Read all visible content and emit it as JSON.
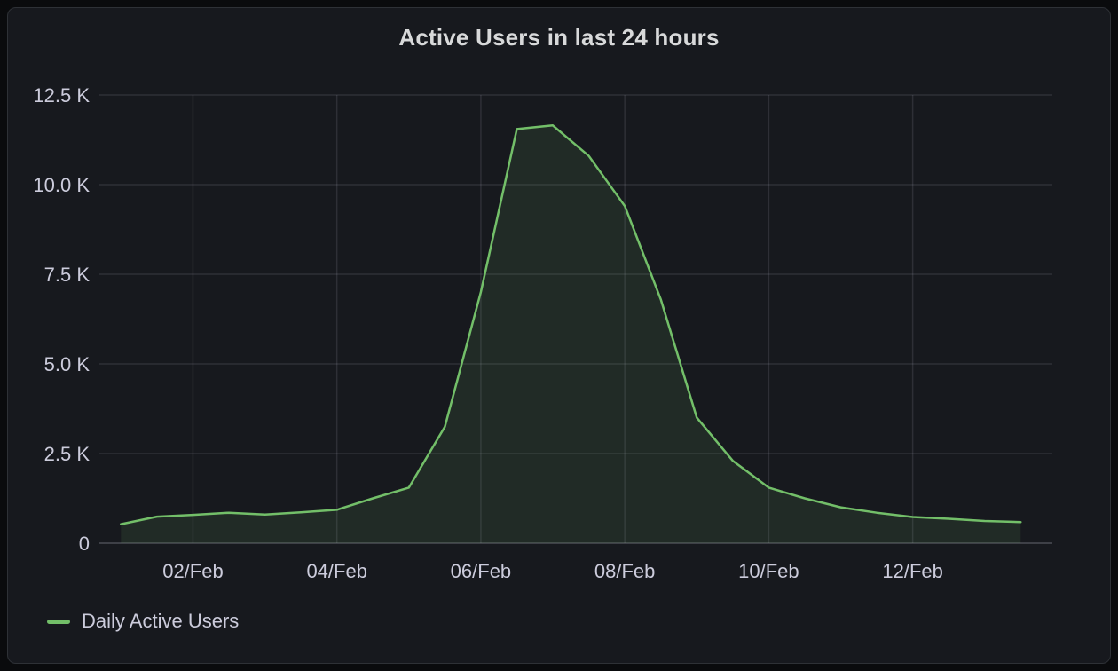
{
  "panel": {
    "title": "Active Users in last 24 hours"
  },
  "legend": {
    "items": [
      {
        "label": "Daily Active Users",
        "color": "#73bf69"
      }
    ]
  },
  "colors": {
    "page_background": "#0a0b0d",
    "panel_background": "#17191e",
    "panel_border": "#2e3136",
    "grid": "rgba(204,204,220,0.13)",
    "axis": "rgba(204,204,220,0.22)",
    "tick_text": "#ccccdc",
    "title_text": "#d8d9da",
    "series_green": "#73bf69"
  },
  "chart_data": {
    "type": "area",
    "title": "Active Users in last 24 hours",
    "xlabel": "",
    "ylabel": "",
    "x_unit": "day of February",
    "xlim": [
      0.7,
      13.94
    ],
    "ylim": [
      0,
      12500
    ],
    "grid": true,
    "legend_position": "bottom-left",
    "x_ticks": [
      {
        "x": 2,
        "label": "02/Feb"
      },
      {
        "x": 4,
        "label": "04/Feb"
      },
      {
        "x": 6,
        "label": "06/Feb"
      },
      {
        "x": 8,
        "label": "08/Feb"
      },
      {
        "x": 10,
        "label": "10/Feb"
      },
      {
        "x": 12,
        "label": "12/Feb"
      }
    ],
    "y_ticks": [
      {
        "y": 0,
        "label": "0"
      },
      {
        "y": 2500,
        "label": "2.5 K"
      },
      {
        "y": 5000,
        "label": "5.0 K"
      },
      {
        "y": 7500,
        "label": "7.5 K"
      },
      {
        "y": 10000,
        "label": "10.0 K"
      },
      {
        "y": 12500,
        "label": "12.5 K"
      }
    ],
    "series": [
      {
        "name": "Daily Active Users",
        "color": "#73bf69",
        "fill_opacity": 0.11,
        "line_width": 2.5,
        "x": [
          1,
          1.5,
          2,
          2.5,
          3,
          3.5,
          4,
          4.5,
          5,
          5.5,
          6,
          6.5,
          7,
          7.5,
          8,
          8.5,
          9,
          9.5,
          10,
          10.5,
          11,
          11.5,
          12,
          12.5,
          13,
          13.5
        ],
        "values": [
          530,
          740,
          790,
          850,
          800,
          860,
          930,
          1250,
          1550,
          3250,
          7000,
          11550,
          11650,
          10800,
          9400,
          6800,
          3500,
          2300,
          1550,
          1250,
          1000,
          850,
          730,
          680,
          620,
          590
        ]
      }
    ]
  }
}
